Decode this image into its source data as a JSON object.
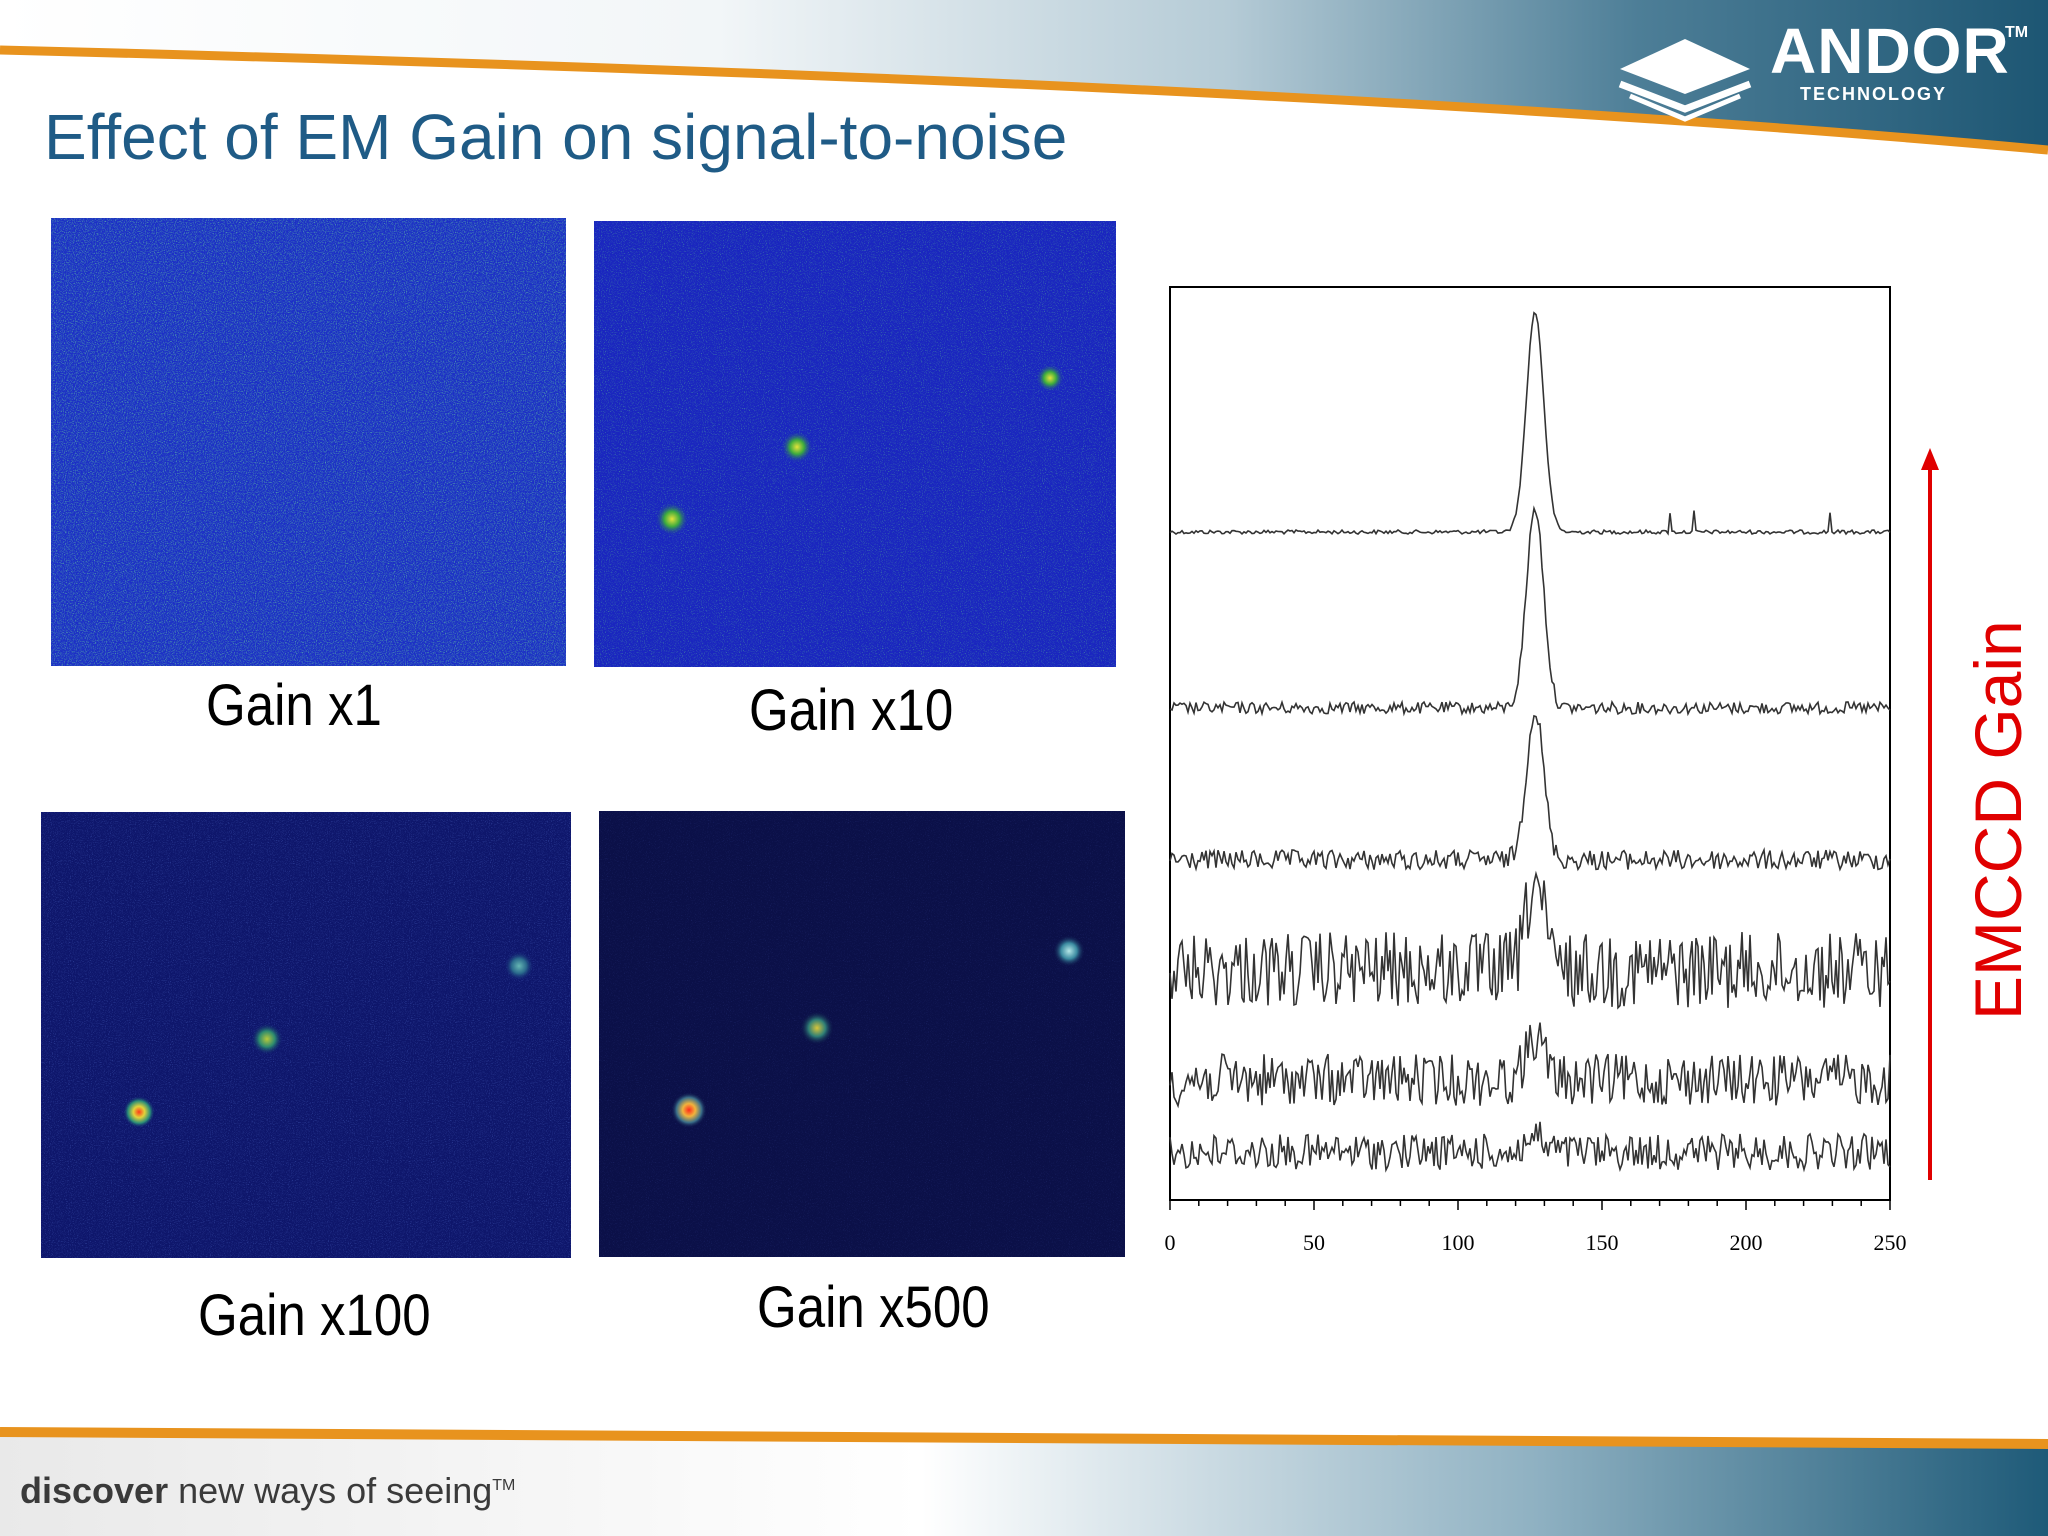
{
  "header": {
    "title": "Effect of EM Gain on signal-to-noise",
    "logo_word": "ANDOR",
    "logo_tm": "TM",
    "logo_sub": "TECHNOLOGY"
  },
  "panels": [
    {
      "caption": "Gain x1"
    },
    {
      "caption": "Gain x10"
    },
    {
      "caption": "Gain x100"
    },
    {
      "caption": "Gain x500"
    }
  ],
  "plot": {
    "x_ticks": [
      "0",
      "50",
      "100",
      "150",
      "200",
      "250"
    ],
    "side_label": "EMCCD Gain"
  },
  "footer": {
    "tagline_bold": "discover",
    "tagline_rest": " new ways of seeing",
    "tagline_tm": "TM"
  },
  "colors": {
    "title": "#1f5b86",
    "gain_arrow": "#e00000",
    "orange_stripe": "#e8931e"
  }
}
